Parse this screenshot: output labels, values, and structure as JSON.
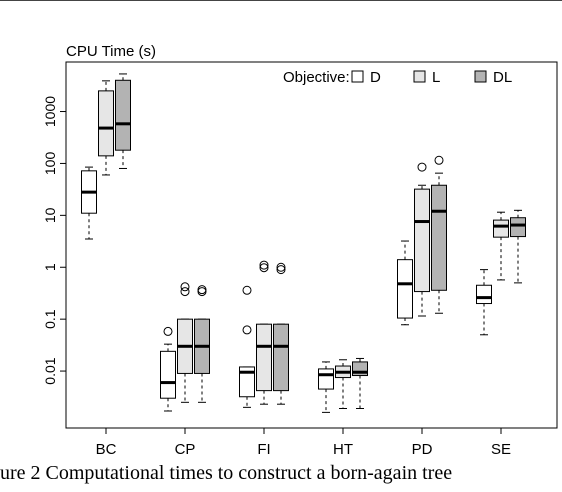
{
  "caption": "ure 2 Computational times to construct a born-again tree",
  "chart_data": {
    "type": "boxplot",
    "ylabel": "CPU Time (s)",
    "yscale": "log",
    "ylim": [
      0.0008,
      9000
    ],
    "yticks": [
      0.01,
      0.1,
      1,
      10,
      100,
      1000
    ],
    "ytick_labels": [
      "0.01",
      "0.1",
      "1",
      "10",
      "100",
      "1000"
    ],
    "grid": false,
    "legend_title": "Objective:",
    "legend_position": "top-right",
    "categories": [
      "BC",
      "CP",
      "FI",
      "HT",
      "PD",
      "SE"
    ],
    "series": [
      {
        "name": "D",
        "color": "#ffffff",
        "boxes": [
          {
            "category": "BC",
            "whisker_low": 3.5,
            "q1": 11,
            "median": 28,
            "q3": 72,
            "whisker_high": 85,
            "outliers": []
          },
          {
            "category": "CP",
            "whisker_low": 0.0017,
            "q1": 0.003,
            "median": 0.006,
            "q3": 0.024,
            "whisker_high": 0.033,
            "outliers": [
              0.058
            ]
          },
          {
            "category": "FI",
            "whisker_low": 0.002,
            "q1": 0.0032,
            "median": 0.0095,
            "q3": 0.012,
            "whisker_high": 0.012,
            "outliers": [
              0.062,
              0.36
            ]
          },
          {
            "category": "HT",
            "whisker_low": 0.0016,
            "q1": 0.0045,
            "median": 0.0085,
            "q3": 0.011,
            "whisker_high": 0.015,
            "outliers": []
          },
          {
            "category": "PD",
            "whisker_low": 0.078,
            "q1": 0.105,
            "median": 0.48,
            "q3": 1.4,
            "whisker_high": 3.2,
            "outliers": []
          },
          {
            "category": "SE",
            "whisker_low": 0.05,
            "q1": 0.2,
            "median": 0.26,
            "q3": 0.45,
            "whisker_high": 0.9,
            "outliers": []
          }
        ]
      },
      {
        "name": "L",
        "color": "#e6e6e6",
        "boxes": [
          {
            "category": "BC",
            "whisker_low": 60,
            "q1": 140,
            "median": 480,
            "q3": 2500,
            "whisker_high": 3900,
            "outliers": []
          },
          {
            "category": "CP",
            "whisker_low": 0.0025,
            "q1": 0.009,
            "median": 0.03,
            "q3": 0.1,
            "whisker_high": 0.1,
            "outliers": [
              0.34,
              0.42
            ]
          },
          {
            "category": "FI",
            "whisker_low": 0.0023,
            "q1": 0.0042,
            "median": 0.03,
            "q3": 0.08,
            "whisker_high": 0.08,
            "outliers": [
              0.98,
              1.1
            ]
          },
          {
            "category": "HT",
            "whisker_low": 0.0019,
            "q1": 0.0075,
            "median": 0.0095,
            "q3": 0.0125,
            "whisker_high": 0.0165,
            "outliers": []
          },
          {
            "category": "PD",
            "whisker_low": 0.115,
            "q1": 0.34,
            "median": 7.6,
            "q3": 32,
            "whisker_high": 38,
            "outliers": [
              85
            ]
          },
          {
            "category": "SE",
            "whisker_low": 0.57,
            "q1": 3.8,
            "median": 6.2,
            "q3": 8.1,
            "whisker_high": 11.5,
            "outliers": []
          }
        ]
      },
      {
        "name": "DL",
        "color": "#b3b3b3",
        "boxes": [
          {
            "category": "BC",
            "whisker_low": 80,
            "q1": 180,
            "median": 580,
            "q3": 4000,
            "whisker_high": 5300,
            "outliers": []
          },
          {
            "category": "CP",
            "whisker_low": 0.0025,
            "q1": 0.009,
            "median": 0.03,
            "q3": 0.1,
            "whisker_high": 0.1,
            "outliers": [
              0.34,
              0.37
            ]
          },
          {
            "category": "FI",
            "whisker_low": 0.0023,
            "q1": 0.0042,
            "median": 0.03,
            "q3": 0.08,
            "whisker_high": 0.08,
            "outliers": [
              0.9,
              1.0
            ]
          },
          {
            "category": "HT",
            "whisker_low": 0.0019,
            "q1": 0.0082,
            "median": 0.0095,
            "q3": 0.015,
            "whisker_high": 0.0175,
            "outliers": []
          },
          {
            "category": "PD",
            "whisker_low": 0.13,
            "q1": 0.36,
            "median": 12,
            "q3": 38,
            "whisker_high": 65,
            "outliers": [
              115
            ]
          },
          {
            "category": "SE",
            "whisker_low": 0.5,
            "q1": 3.9,
            "median": 6.5,
            "q3": 9,
            "whisker_high": 12.5,
            "outliers": []
          }
        ]
      }
    ]
  }
}
